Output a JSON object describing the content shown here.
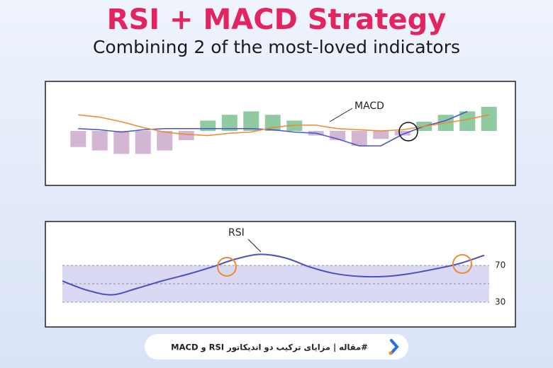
{
  "header": {
    "title": "RSI + MACD Strategy",
    "subtitle": "Combining 2 of the most-loved indicators"
  },
  "chart_data": [
    {
      "type": "bar",
      "annotation": "MACD",
      "ylim": [
        -40,
        40
      ],
      "series": [
        {
          "type": "bar",
          "color": "#8fcaa0",
          "negative_color": "#d2b6d3",
          "values": [
            -14,
            -17,
            -20,
            -20,
            -17,
            -8,
            9,
            14,
            17,
            14,
            9,
            -4,
            -8,
            -13,
            -7,
            -4,
            8,
            14,
            17,
            21
          ]
        },
        {
          "type": "line",
          "color": "#4a55c8",
          "values": [
            2,
            1,
            -1,
            1,
            2,
            2,
            2,
            2,
            2,
            1,
            -1,
            -2,
            -7,
            -13,
            -13,
            -3,
            4,
            9,
            17,
            null
          ]
        },
        {
          "type": "line",
          "color": "#f08a30",
          "values": [
            14,
            12,
            8,
            3,
            -1,
            -3,
            -4,
            -2,
            -1,
            3,
            5,
            5,
            2,
            1,
            0,
            1,
            4,
            7,
            10,
            14
          ]
        }
      ]
    },
    {
      "type": "line",
      "annotation": "RSI",
      "ylim": [
        10,
        110
      ],
      "yticks": [
        70,
        30
      ],
      "band_color": "#d9d9f4",
      "series": [
        {
          "color": "#4a4fc4",
          "values": [
            53,
            43,
            38,
            45,
            53,
            60,
            68,
            77,
            82,
            78,
            68,
            61,
            58,
            58,
            61,
            66,
            72,
            81
          ]
        }
      ]
    }
  ],
  "footer": {
    "text": "#مقاله | مزایای ترکیب دو اندیکاتور RSI و MACD"
  }
}
